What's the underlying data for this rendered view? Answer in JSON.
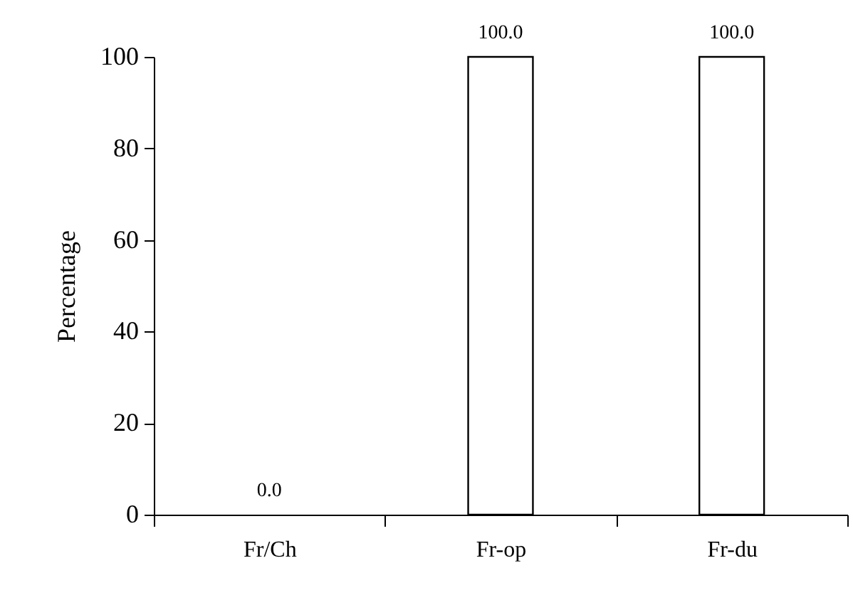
{
  "chart_data": {
    "type": "bar",
    "ylabel": "Percentage",
    "categories": [
      "Fr/Ch",
      "Fr-op",
      "Fr-du"
    ],
    "values": [
      0.0,
      100.0,
      100.0
    ],
    "value_labels": [
      "0.0",
      "100.0",
      "100.0"
    ],
    "color": "#ffffff",
    "ylim": [
      0,
      100
    ],
    "yticks": [
      0,
      20,
      40,
      60,
      80,
      100
    ],
    "grid": false
  }
}
